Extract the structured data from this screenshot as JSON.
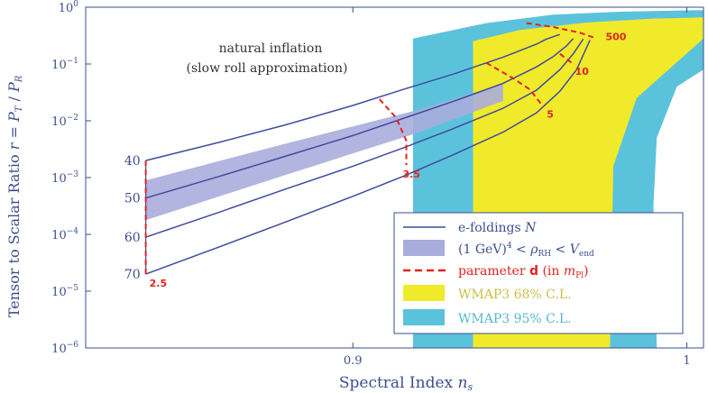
{
  "chart_data": {
    "type": "line",
    "title": "",
    "xlabel": "Spectral Index n_s",
    "ylabel": "Tensor to Scalar Ratio r = P_T / P_R",
    "xlim": [
      0.82,
      1.005
    ],
    "ylim_log10": [
      -6,
      0
    ],
    "x_ticks": [
      "0.9",
      "1"
    ],
    "y_ticks": [
      "10^0",
      "10^-1",
      "10^-2",
      "10^-3",
      "10^-4",
      "10^-5",
      "10^-6"
    ],
    "annotation": [
      "natural inflation",
      "(slow roll approximation)"
    ],
    "series": [
      {
        "name": "N = 40",
        "label": "40",
        "points": [
          [
            0.838,
            -2.7
          ],
          [
            0.86,
            -2.38
          ],
          [
            0.88,
            -2.07
          ],
          [
            0.9,
            -1.73
          ],
          [
            0.915,
            -1.45
          ],
          [
            0.93,
            -1.18
          ],
          [
            0.945,
            -0.88
          ],
          [
            0.955,
            -0.65
          ],
          [
            0.958,
            -0.56
          ],
          [
            0.962,
            -0.48
          ]
        ]
      },
      {
        "name": "N = 50",
        "label": "50",
        "points": [
          [
            0.838,
            -3.36
          ],
          [
            0.86,
            -2.98
          ],
          [
            0.88,
            -2.62
          ],
          [
            0.9,
            -2.26
          ],
          [
            0.915,
            -1.96
          ],
          [
            0.93,
            -1.66
          ],
          [
            0.945,
            -1.34
          ],
          [
            0.955,
            -1.05
          ],
          [
            0.96,
            -0.87
          ],
          [
            0.964,
            -0.68
          ],
          [
            0.966,
            -0.55
          ]
        ]
      },
      {
        "name": "N = 60",
        "label": "60",
        "points": [
          [
            0.838,
            -4.05
          ],
          [
            0.86,
            -3.61
          ],
          [
            0.88,
            -3.2
          ],
          [
            0.9,
            -2.8
          ],
          [
            0.915,
            -2.48
          ],
          [
            0.93,
            -2.14
          ],
          [
            0.945,
            -1.78
          ],
          [
            0.955,
            -1.46
          ],
          [
            0.962,
            -1.1
          ],
          [
            0.966,
            -0.82
          ],
          [
            0.969,
            -0.56
          ]
        ]
      },
      {
        "name": "N = 70",
        "label": "70",
        "points": [
          [
            0.838,
            -4.7
          ],
          [
            0.86,
            -4.22
          ],
          [
            0.88,
            -3.78
          ],
          [
            0.9,
            -3.33
          ],
          [
            0.915,
            -2.98
          ],
          [
            0.93,
            -2.6
          ],
          [
            0.945,
            -2.2
          ],
          [
            0.955,
            -1.86
          ],
          [
            0.962,
            -1.48
          ],
          [
            0.967,
            -1.1
          ],
          [
            0.971,
            -0.58
          ]
        ]
      }
    ],
    "reheating_band": {
      "label": "(1 GeV)^4 < ρ_RH < V_end",
      "upper": [
        [
          0.838,
          -3.05
        ],
        [
          0.88,
          -2.4
        ],
        [
          0.92,
          -1.8
        ],
        [
          0.945,
          -1.35
        ]
      ],
      "lower": [
        [
          0.838,
          -3.75
        ],
        [
          0.88,
          -2.95
        ],
        [
          0.92,
          -2.2
        ],
        [
          0.945,
          -1.65
        ]
      ]
    },
    "parameter_d_curves": [
      {
        "label": "2.5",
        "points": [
          [
            0.838,
            -2.7
          ],
          [
            0.838,
            -4.7
          ]
        ]
      },
      {
        "label": "3.5",
        "points": [
          [
            0.908,
            -1.62
          ],
          [
            0.913,
            -1.95
          ],
          [
            0.916,
            -2.35
          ],
          [
            0.916,
            -2.78
          ]
        ]
      },
      {
        "label": "5",
        "points": [
          [
            0.94,
            -0.98
          ],
          [
            0.948,
            -1.25
          ],
          [
            0.953,
            -1.45
          ],
          [
            0.957,
            -1.75
          ]
        ]
      },
      {
        "label": "10",
        "points": [
          [
            0.962,
            -0.82
          ],
          [
            0.966,
            -1.0
          ]
        ]
      },
      {
        "label": "500",
        "points": [
          [
            0.952,
            -0.28
          ],
          [
            0.96,
            -0.35
          ],
          [
            0.968,
            -0.45
          ],
          [
            0.973,
            -0.55
          ]
        ]
      }
    ],
    "wmap95_region": [
      [
        0.918,
        -6.0
      ],
      [
        0.918,
        -0.55
      ],
      [
        0.94,
        -0.28
      ],
      [
        0.96,
        -0.13
      ],
      [
        0.98,
        -0.08
      ],
      [
        1.005,
        -0.05
      ],
      [
        1.005,
        -1.1
      ],
      [
        0.997,
        -1.4
      ],
      [
        0.991,
        -2.3
      ],
      [
        0.99,
        -3.5
      ],
      [
        0.991,
        -6.0
      ]
    ],
    "wmap68_region": [
      [
        0.936,
        -6.0
      ],
      [
        0.936,
        -0.6
      ],
      [
        0.95,
        -0.4
      ],
      [
        0.97,
        -0.27
      ],
      [
        0.99,
        -0.2
      ],
      [
        1.005,
        -0.18
      ],
      [
        1.005,
        -0.55
      ],
      [
        0.985,
        -1.6
      ],
      [
        0.978,
        -2.8
      ],
      [
        0.977,
        -6.0
      ]
    ],
    "legend": {
      "position": "lower-right",
      "entries": [
        {
          "label": "e-foldings N",
          "style": "line",
          "color": "#3f4a9f"
        },
        {
          "label": "(1 GeV)^4 < ρ_RH < V_end",
          "style": "patch",
          "color": "#a9addc"
        },
        {
          "label": "parameter d (in m_Pl)",
          "style": "dashed",
          "color": "#e0241f"
        },
        {
          "label": "WMAP3 68% C.L.",
          "style": "patch",
          "color": "#f1ea2b"
        },
        {
          "label": "WMAP3 95% C.L.",
          "style": "patch",
          "color": "#5bc2dc"
        }
      ]
    },
    "colors": {
      "n_line": "#3f4a9f",
      "band": "#a9addc",
      "d_line": "#e0241f",
      "wmap68": "#f1ea2b",
      "wmap95": "#5bc2dc",
      "axis_text": "#3d4e8e",
      "wmap68_text": "#c9c04a",
      "wmap95_text": "#56b7cf"
    }
  }
}
